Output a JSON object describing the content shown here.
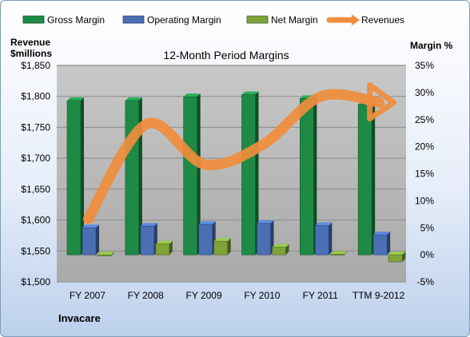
{
  "chart_data": {
    "type": "bar",
    "title": "12-Month Period Margins",
    "company": "Invacare",
    "y_left_label": [
      "Revenue",
      "$millions"
    ],
    "y_right_label": "Margin %",
    "categories": [
      "FY 2007",
      "FY 2008",
      "FY 2009",
      "FY 2010",
      "FY 2011",
      "TTM 9-2012"
    ],
    "y_left_ticks": [
      "$1,500",
      "$1,550",
      "$1,600",
      "$1,650",
      "$1,700",
      "$1,750",
      "$1,800",
      "$1,850"
    ],
    "y_right_ticks": [
      "-5%",
      "0%",
      "5%",
      "10%",
      "15%",
      "20%",
      "25%",
      "30%",
      "35%"
    ],
    "ylim_left": [
      1500,
      1850
    ],
    "ylim_right": [
      -5,
      35
    ],
    "series": [
      {
        "name": "Gross Margin",
        "axis": "right",
        "kind": "bar",
        "color": "#1e8a45",
        "values": [
          28.5,
          28.5,
          29.2,
          29.6,
          28.9,
          27.8
        ]
      },
      {
        "name": "Operating Margin",
        "axis": "right",
        "kind": "bar",
        "color": "#4a6fb5",
        "values": [
          5.0,
          5.3,
          5.6,
          5.8,
          5.4,
          3.7
        ]
      },
      {
        "name": "Net Margin",
        "axis": "right",
        "kind": "bar",
        "color": "#7da33a",
        "values": [
          -0.2,
          2.0,
          2.5,
          1.4,
          0.1,
          -1.3
        ]
      },
      {
        "name": "Revenues",
        "axis": "left",
        "kind": "line",
        "color": "#f08d3c",
        "values": [
          1602,
          1755,
          1690,
          1722,
          1800,
          1790
        ]
      }
    ],
    "legend_position": "top"
  }
}
